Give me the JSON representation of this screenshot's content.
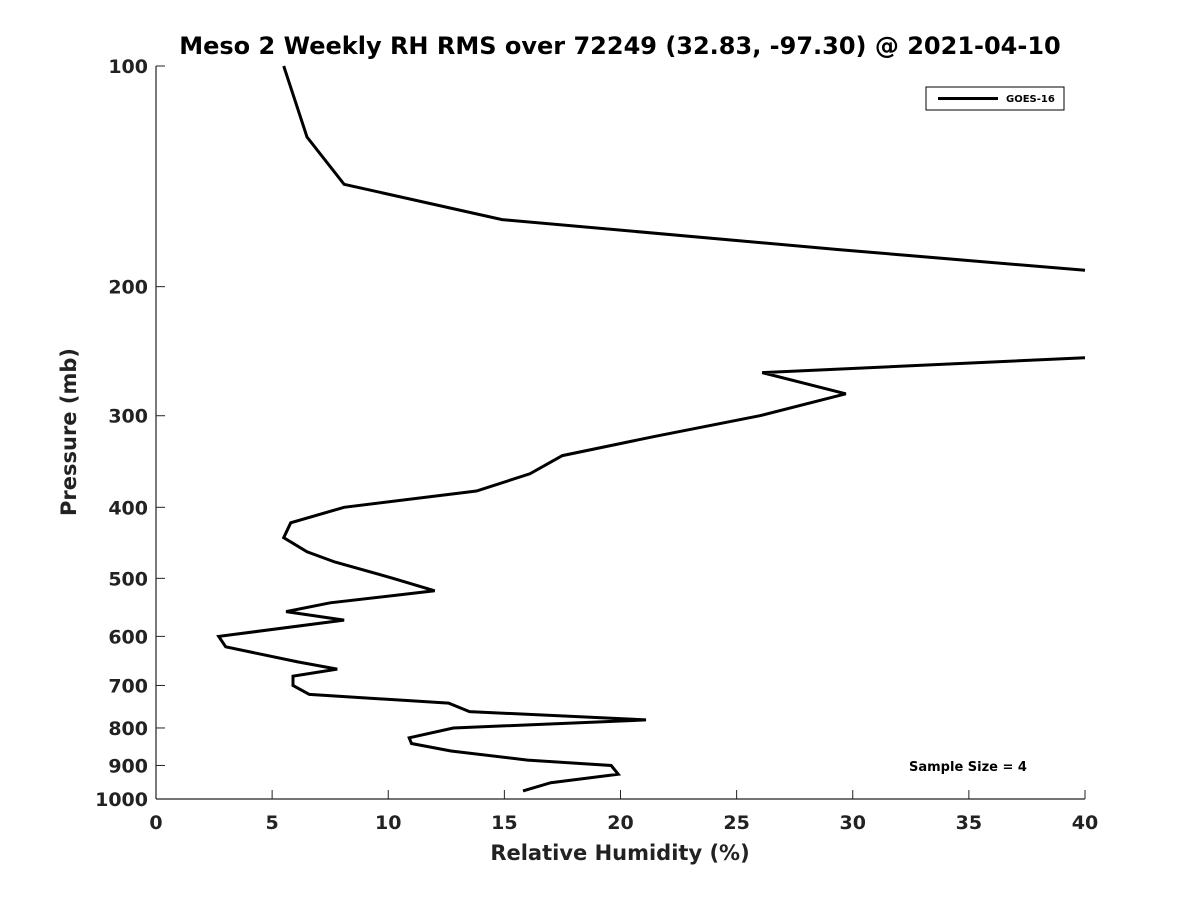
{
  "chart_data": {
    "type": "line",
    "title": "Meso 2 Weekly RH RMS over 72249 (32.83, -97.30) @ 2021-04-10",
    "xlabel": "Relative Humidity (%)",
    "ylabel": "Pressure (mb)",
    "xlim": [
      0,
      40
    ],
    "ylim": [
      100,
      1000
    ],
    "y_scale": "log",
    "y_reversed": true,
    "xticks": [
      0,
      5,
      10,
      15,
      20,
      25,
      30,
      35,
      40
    ],
    "yticks": [
      100,
      200,
      300,
      400,
      500,
      600,
      700,
      800,
      900,
      1000
    ],
    "grid": false,
    "legend": {
      "position": "top-right",
      "entries": [
        "GOES-16"
      ]
    },
    "annotation": "Sample Size = 4",
    "series": [
      {
        "name": "GOES-16",
        "color": "#000000",
        "points": [
          [
            15.8,
            975
          ],
          [
            17.0,
            950
          ],
          [
            19.9,
            925
          ],
          [
            19.6,
            900
          ],
          [
            16.0,
            885
          ],
          [
            12.7,
            860
          ],
          [
            11.0,
            840
          ],
          [
            10.9,
            825
          ],
          [
            12.8,
            800
          ],
          [
            21.1,
            780
          ],
          [
            13.5,
            760
          ],
          [
            12.6,
            740
          ],
          [
            6.6,
            720
          ],
          [
            5.9,
            700
          ],
          [
            5.9,
            680
          ],
          [
            7.8,
            665
          ],
          [
            6.1,
            650
          ],
          [
            3.0,
            620
          ],
          [
            2.7,
            600
          ],
          [
            8.1,
            570
          ],
          [
            5.6,
            555
          ],
          [
            7.5,
            540
          ],
          [
            12.0,
            520
          ],
          [
            10.2,
            500
          ],
          [
            7.7,
            475
          ],
          [
            6.5,
            460
          ],
          [
            5.5,
            440
          ],
          [
            5.8,
            420
          ],
          [
            8.1,
            400
          ],
          [
            13.8,
            380
          ],
          [
            16.1,
            360
          ],
          [
            17.5,
            340
          ],
          [
            21.5,
            320
          ],
          [
            26.0,
            300
          ],
          [
            29.7,
            280
          ],
          [
            26.1,
            262
          ],
          [
            40.0,
            250
          ],
          [
            null,
            null
          ],
          [
            40.0,
            190
          ],
          [
            29.4,
            178
          ],
          [
            14.9,
            162
          ],
          [
            8.1,
            145
          ],
          [
            6.5,
            125
          ],
          [
            5.5,
            100
          ]
        ]
      }
    ]
  }
}
